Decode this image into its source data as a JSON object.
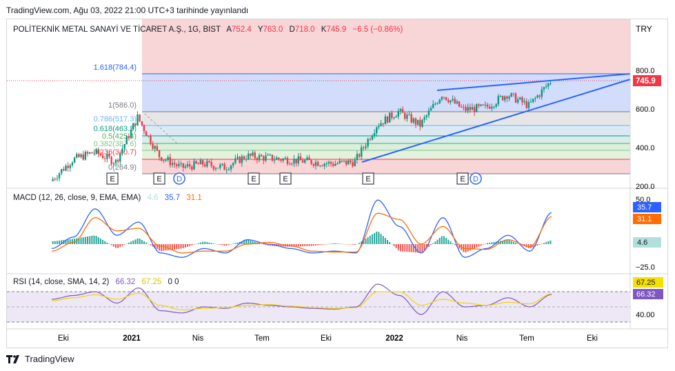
{
  "header": {
    "publish_note": "TradingView.com, Ağu 03, 2022 21:00 UTC+3 tarihinde yayınlandı"
  },
  "legend": {
    "symbol": "POLİTEKNİK METAL SANAYİ VE TİCARET A.Ş., 1G, BIST",
    "o_label": "A",
    "o_val": "752.4",
    "h_label": "Y",
    "h_val": "763.0",
    "l_label": "D",
    "l_val": "718.0",
    "c_label": "K",
    "c_val": "745.9",
    "chg": "−6.5 (−0.86%)"
  },
  "currency": "TRY",
  "price_axis": [
    "800.0",
    "600.0",
    "400.0",
    "200.0"
  ],
  "last_price": "745.9",
  "fib_labels": [
    "1.618(784.4)",
    "1(586.0)",
    "0.786(517.3)",
    "0.618(463.3)",
    "0.5(425.4)",
    "0.382(387.6)",
    "0.236(340.7)",
    "0(264.9)"
  ],
  "events": [
    {
      "t": "E"
    },
    {
      "t": "E"
    },
    {
      "t": "D"
    },
    {
      "t": "E"
    },
    {
      "t": "E"
    },
    {
      "t": "E"
    },
    {
      "t": "E"
    },
    {
      "t": "D"
    }
  ],
  "macd": {
    "label": "MACD (12, 26, close, 9, EMA, EMA)",
    "hist_val": "4.6",
    "macd_val": "35.7",
    "signal_val": "31.1",
    "axis": [
      "50.0",
      "−25.0"
    ],
    "colors": {
      "macd": "#2962ff",
      "signal": "#ff6d00",
      "hist_pos": "#26a69a",
      "hist_neg": "#ef5350"
    }
  },
  "rsi": {
    "label": "RSI (14, close, SMA, 14, 2)",
    "rsi_val": "66.32",
    "ma_val": "67.25",
    "extra": "0 0",
    "axis": [
      "40.00"
    ],
    "colors": {
      "rsi": "#7e57c2",
      "ma": "#f5d400"
    }
  },
  "time_axis": [
    "Eki",
    "2021",
    "Nis",
    "Tem",
    "Eki",
    "2022",
    "Nis",
    "Tem",
    "Eki"
  ],
  "footer": {
    "brand": "TradingView"
  },
  "chart_data": [
    {
      "type": "candlestick",
      "title": "POLİTEKNİK METAL SANAYİ VE TİCARET A.Ş., 1G, BIST",
      "ylabel": "TRY",
      "ylim": [
        200,
        830
      ],
      "x": [
        "2020-09",
        "2020-10",
        "2020-11",
        "2020-12",
        "2021-01",
        "2021-02",
        "2021-03",
        "2021-04",
        "2021-05",
        "2021-06",
        "2021-07",
        "2021-08",
        "2021-09",
        "2021-10",
        "2021-11",
        "2021-12",
        "2022-01",
        "2022-02",
        "2022-03",
        "2022-04",
        "2022-05",
        "2022-06",
        "2022-07",
        "2022-08"
      ],
      "close": [
        230,
        340,
        380,
        330,
        560,
        360,
        300,
        320,
        300,
        360,
        350,
        340,
        330,
        320,
        330,
        520,
        590,
        520,
        680,
        600,
        610,
        680,
        620,
        746
      ],
      "fibonacci": [
        {
          "level": 1.618,
          "price": 784.4
        },
        {
          "level": 1,
          "price": 586.0
        },
        {
          "level": 0.786,
          "price": 517.3
        },
        {
          "level": 0.618,
          "price": 463.3
        },
        {
          "level": 0.5,
          "price": 425.4
        },
        {
          "level": 0.382,
          "price": 387.6
        },
        {
          "level": 0.236,
          "price": 340.7
        },
        {
          "level": 0,
          "price": 264.9
        }
      ],
      "last_price": 745.9
    },
    {
      "type": "line",
      "title": "MACD (12, 26, close, 9, EMA, EMA)",
      "ylim": [
        -35,
        60
      ],
      "series": [
        {
          "name": "MACD",
          "values": [
            -5,
            8,
            40,
            10,
            25,
            -10,
            -15,
            -5,
            -10,
            5,
            0,
            -5,
            -10,
            -8,
            -10,
            50,
            20,
            -10,
            30,
            -15,
            -5,
            10,
            -8,
            35.7
          ]
        },
        {
          "name": "Signal",
          "values": [
            -8,
            2,
            30,
            15,
            18,
            -2,
            -10,
            -8,
            -8,
            0,
            2,
            -2,
            -8,
            -9,
            -9,
            35,
            28,
            0,
            20,
            -5,
            -6,
            5,
            -3,
            31.1
          ]
        }
      ],
      "histogram_last": 4.6
    },
    {
      "type": "line",
      "title": "RSI (14, close, SMA, 14, 2)",
      "ylim": [
        30,
        90
      ],
      "series": [
        {
          "name": "RSI",
          "values": [
            60,
            65,
            70,
            55,
            75,
            45,
            42,
            50,
            48,
            55,
            52,
            50,
            48,
            47,
            50,
            80,
            65,
            40,
            70,
            50,
            52,
            62,
            50,
            66.32
          ]
        },
        {
          "name": "MA",
          "values": [
            58,
            62,
            66,
            60,
            68,
            52,
            46,
            48,
            49,
            52,
            53,
            51,
            49,
            48,
            49,
            70,
            70,
            52,
            60,
            55,
            52,
            56,
            54,
            67.25
          ]
        }
      ]
    }
  ]
}
